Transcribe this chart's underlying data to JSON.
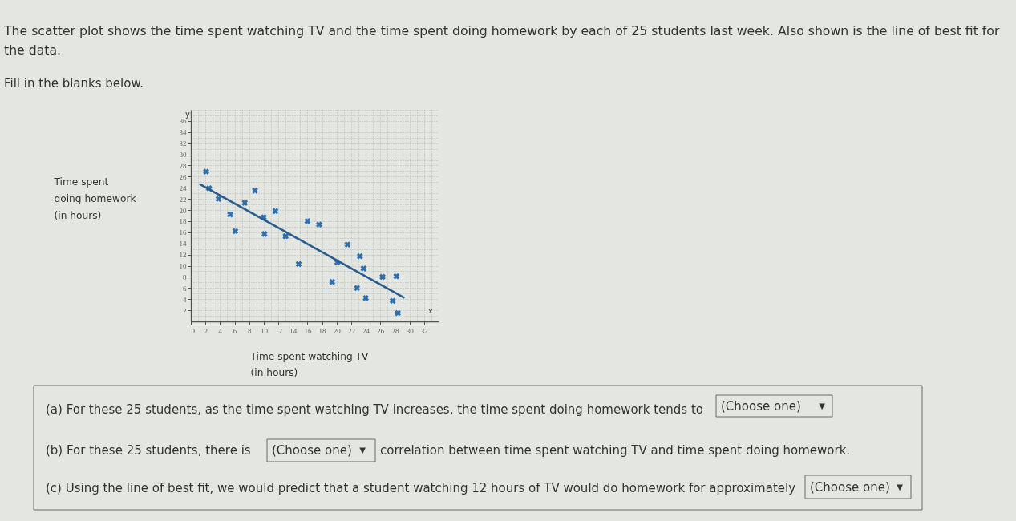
{
  "chart_data": {
    "type": "scatter",
    "xlabel": "Time spent watching TV\n(in hours)",
    "ylabel": "Time spent\ndoing homework\n(in hours)",
    "annotations": [
      "The scatter plot shows the time spent watching TV and the time spent doing homework by each of 25 students last week. Also shown is the line of best fit for\nthe data.",
      "Fill in the blanks below.",
      "(a) For these 25 students, as the time spent watching TV increases, the time spent doing homework tends to",
      "(Choose one)",
      "▼",
      "(b) For these 25 students, there is",
      "(Choose one)",
      "▼",
      "correlation between time spent watching TV and time spent doing homework.",
      "(c) Using the line of best fit, we would predict that a student watching 12 hours of TV would do homework for approximately",
      "(Choose one)",
      "▼",
      "x",
      "y"
    ],
    "xlim": [
      0,
      34
    ],
    "ylim": [
      0,
      38
    ],
    "xticks": [
      0,
      {
        "value": 1,
        "label": null
      },
      2,
      {
        "value": 3,
        "label": null
      },
      4,
      {
        "value": 5,
        "label": null
      },
      6,
      {
        "value": 7,
        "label": null
      },
      8,
      {
        "value": 9,
        "label": null
      },
      10,
      {
        "value": 11,
        "label": null
      },
      12,
      {
        "value": 13,
        "label": null
      },
      14,
      {
        "value": 15,
        "label": null
      },
      16,
      {
        "value": 17,
        "label": null
      },
      18,
      {
        "value": 19,
        "label": null
      },
      20,
      {
        "value": 21,
        "label": null
      },
      22,
      {
        "value": 23,
        "label": null
      },
      24,
      {
        "value": 25,
        "label": null
      },
      26,
      {
        "value": 27,
        "label": null
      },
      28,
      {
        "value": 29,
        "label": null
      },
      30,
      {
        "value": 31,
        "label": null
      },
      32,
      {
        "value": 33,
        "label": null
      }
    ],
    "yticks": [
      {
        "value": 1,
        "label": null
      },
      2,
      {
        "value": 3,
        "label": null
      },
      4,
      {
        "value": 5,
        "label": null
      },
      6,
      {
        "value": 7,
        "label": null
      },
      8,
      {
        "value": 9,
        "label": null
      },
      10,
      {
        "value": 11,
        "label": null
      },
      12,
      {
        "value": 13,
        "label": null
      },
      14,
      {
        "value": 15,
        "label": null
      },
      16,
      {
        "value": 17,
        "label": null
      },
      18,
      {
        "value": 19,
        "label": null
      },
      20,
      {
        "value": 21,
        "label": null
      },
      22,
      {
        "value": 23,
        "label": null
      },
      24,
      {
        "value": 25,
        "label": null
      },
      26,
      {
        "value": 27,
        "label": null
      },
      28,
      {
        "value": 29,
        "label": null
      },
      30,
      {
        "value": 31,
        "label": null
      },
      32,
      {
        "value": 33,
        "label": null
      },
      34,
      {
        "value": 35,
        "label": null
      },
      36,
      {
        "value": 37,
        "label": null
      },
      {
        "value": 38,
        "label": null
      }
    ],
    "grid": true,
    "marker": "cross",
    "series": [
      {
        "color": "#2e6fb0",
        "x": [
          2.1,
          2.5,
          3.8,
          5.4,
          6.1,
          7.4,
          8.8,
          10.0,
          10.1,
          11.6,
          13.0,
          14.8,
          16.0,
          17.6,
          19.4,
          20.1,
          21.5,
          22.8,
          23.2,
          23.7,
          24.0,
          26.3,
          27.7,
          28.2,
          28.4
        ],
        "values": [
          26.9,
          23.9,
          22.0,
          19.2,
          16.2,
          21.3,
          23.5,
          18.7,
          15.7,
          19.8,
          15.3,
          10.3,
          18.0,
          17.4,
          7.1,
          10.6,
          13.8,
          6.0,
          11.7,
          9.5,
          4.2,
          8.0,
          3.7,
          8.1,
          1.5
        ]
      },
      {
        "type": "line",
        "color": "#2a5d8f",
        "marker": "none",
        "x": [
          1.3,
          29.2
        ],
        "values": [
          24.6,
          4.3
        ]
      }
    ]
  }
}
